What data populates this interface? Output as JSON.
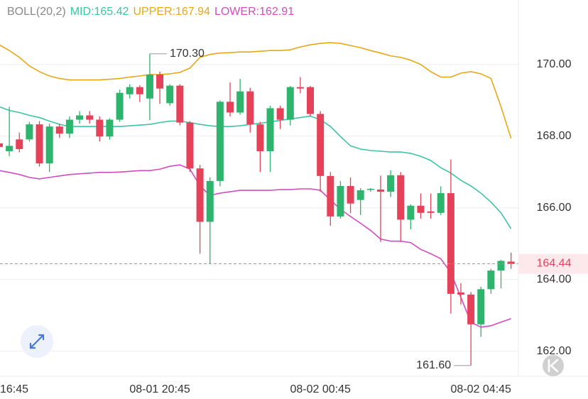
{
  "chart_data": {
    "type": "candlestick",
    "indicator": "BOLL(20,2)",
    "categories": [
      "16:45",
      null,
      null,
      null,
      null,
      null,
      null,
      null,
      null,
      null,
      null,
      null,
      null,
      null,
      null,
      null,
      "08-01 20:45",
      null,
      null,
      null,
      null,
      null,
      null,
      null,
      null,
      null,
      null,
      null,
      null,
      null,
      null,
      null,
      "08-02 00:45",
      null,
      null,
      null,
      null,
      null,
      null,
      null,
      null,
      null,
      null,
      null,
      null,
      null,
      null,
      null,
      "08-02 04:45",
      null,
      null,
      null
    ],
    "open": [
      167.8,
      167.58,
      167.91,
      167.91,
      168.33,
      167.24,
      168.27,
      168.07,
      168.46,
      168.58,
      168.46,
      167.99,
      168.46,
      169.17,
      169.37,
      169.05,
      169.72,
      168.92,
      169.41,
      168.38,
      167.1,
      165.61,
      166.75,
      168.96,
      168.66,
      169.25,
      168.33,
      167.58,
      168.78,
      168.46,
      169.37,
      169.37,
      168.62,
      166.89,
      165.76,
      166.61,
      166.22,
      166.51,
      166.51,
      166.45,
      166.91,
      165.67,
      166.06,
      165.9,
      165.86,
      166.41,
      163.64,
      163.58,
      162.75,
      163.73,
      164.25,
      164.5
    ],
    "high": [
      168.0,
      168.82,
      168.1,
      168.4,
      168.42,
      168.35,
      168.35,
      168.55,
      168.7,
      168.7,
      168.55,
      168.5,
      169.3,
      169.45,
      169.42,
      170.3,
      169.8,
      169.45,
      169.45,
      168.42,
      167.2,
      166.85,
      169.0,
      169.5,
      169.6,
      169.35,
      168.4,
      168.85,
      168.85,
      169.4,
      169.65,
      169.4,
      168.7,
      167.0,
      166.75,
      166.85,
      166.55,
      166.55,
      166.9,
      167.05,
      167.0,
      166.1,
      166.4,
      166.4,
      166.6,
      167.35,
      163.9,
      163.65,
      163.8,
      164.3,
      164.55,
      164.75
    ],
    "low": [
      167.5,
      167.44,
      167.55,
      167.85,
      167.15,
      167.0,
      167.95,
      167.95,
      168.35,
      168.35,
      167.85,
      167.9,
      168.4,
      169.05,
      168.95,
      168.45,
      168.9,
      168.85,
      168.3,
      167.0,
      164.72,
      164.44,
      166.6,
      168.55,
      168.6,
      168.1,
      167.0,
      167.0,
      168.2,
      168.3,
      169.2,
      168.55,
      166.45,
      165.5,
      165.7,
      165.85,
      165.8,
      166.45,
      165.05,
      166.3,
      165.05,
      165.4,
      165.7,
      165.7,
      165.8,
      163.05,
      163.3,
      161.6,
      162.4,
      163.6,
      163.75,
      164.3
    ],
    "close": [
      167.7,
      167.73,
      167.64,
      168.33,
      167.24,
      168.27,
      168.07,
      168.46,
      168.58,
      168.46,
      167.99,
      168.46,
      169.21,
      169.37,
      169.17,
      169.72,
      169.33,
      169.41,
      168.38,
      167.1,
      165.61,
      166.75,
      168.96,
      168.66,
      169.25,
      168.33,
      167.58,
      168.78,
      168.46,
      169.37,
      169.33,
      168.62,
      166.89,
      165.76,
      166.61,
      166.12,
      166.49,
      166.53,
      166.45,
      166.91,
      165.67,
      166.06,
      165.86,
      165.86,
      166.41,
      163.6,
      163.58,
      162.75,
      163.73,
      164.25,
      164.52,
      164.44
    ],
    "up_color": "#2eb46c",
    "down_color": "#e5425a",
    "series": [
      {
        "name": "MID:165.42",
        "color": "#3cc4a4",
        "values": [
          168.82,
          168.72,
          168.66,
          168.58,
          168.52,
          168.42,
          168.33,
          168.27,
          168.27,
          168.27,
          168.27,
          168.27,
          168.27,
          168.29,
          168.31,
          168.33,
          168.38,
          168.42,
          168.42,
          168.38,
          168.33,
          168.29,
          168.27,
          168.27,
          168.29,
          168.33,
          168.36,
          168.4,
          168.44,
          168.48,
          168.52,
          168.56,
          168.46,
          168.27,
          167.99,
          167.73,
          167.64,
          167.6,
          167.58,
          167.56,
          167.56,
          167.52,
          167.44,
          167.32,
          167.12,
          166.97,
          166.77,
          166.61,
          166.41,
          166.16,
          165.86,
          165.42
        ]
      },
      {
        "name": "UPPER:167.94",
        "color": "#e8a815",
        "values": [
          170.55,
          170.39,
          170.2,
          169.96,
          169.8,
          169.68,
          169.61,
          169.57,
          169.57,
          169.57,
          169.57,
          169.59,
          169.61,
          169.65,
          169.68,
          169.72,
          169.72,
          169.74,
          169.78,
          169.9,
          170.2,
          170.28,
          170.32,
          170.33,
          170.35,
          170.35,
          170.37,
          170.39,
          170.39,
          170.41,
          170.49,
          170.55,
          170.59,
          170.61,
          170.59,
          170.53,
          170.47,
          170.39,
          170.32,
          170.24,
          170.2,
          170.12,
          170.0,
          169.8,
          169.65,
          169.65,
          169.76,
          169.8,
          169.74,
          169.61,
          168.82,
          167.94
        ]
      },
      {
        "name": "LOWER:162.91",
        "color": "#d24cbf",
        "values": [
          167.04,
          166.99,
          166.93,
          166.85,
          166.81,
          166.85,
          166.89,
          166.93,
          166.95,
          166.97,
          166.99,
          166.99,
          167.0,
          167.02,
          167.04,
          167.04,
          167.08,
          167.16,
          167.2,
          167.08,
          166.61,
          166.35,
          166.41,
          166.45,
          166.49,
          166.49,
          166.49,
          166.49,
          166.51,
          166.51,
          166.53,
          166.53,
          166.49,
          166.22,
          165.96,
          165.76,
          165.57,
          165.37,
          165.13,
          165.07,
          165.07,
          165.03,
          164.84,
          164.72,
          164.58,
          164.19,
          163.5,
          162.81,
          162.67,
          162.71,
          162.81,
          162.91
        ]
      }
    ],
    "high_label": {
      "value": 170.3,
      "label": "170.30"
    },
    "low_label": {
      "value": 161.6,
      "label": "161.60"
    },
    "last_price": {
      "value": 164.44,
      "label": "164.44"
    },
    "ylim": [
      161.3,
      171.8
    ],
    "yticks": [
      {
        "value": 162,
        "label": "162.00"
      },
      {
        "value": 164,
        "label": "164.00"
      },
      {
        "value": 166,
        "label": "166.00"
      },
      {
        "value": 168,
        "label": "168.00"
      },
      {
        "value": 170,
        "label": "170.00"
      }
    ],
    "grid": true
  }
}
